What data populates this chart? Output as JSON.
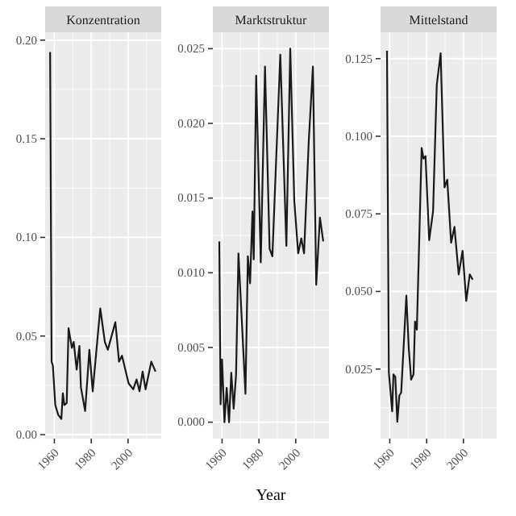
{
  "chart_data": [
    {
      "type": "line",
      "title": "Konzentration",
      "xlim": [
        1955,
        2018
      ],
      "xticks": [
        1960,
        1980,
        2000
      ],
      "ylim": [
        -0.002,
        0.204
      ],
      "yticks": [
        {
          "value": 0,
          "label": "0.00"
        },
        {
          "value": 0.05,
          "label": "0.05"
        },
        {
          "value": 0.1,
          "label": "0.10"
        },
        {
          "value": 0.15,
          "label": "0.15"
        },
        {
          "value": 0.2,
          "label": "0.20"
        }
      ],
      "grid": true,
      "series": [
        {
          "color": "#1a1a1a",
          "x": [
            1957.7,
            1958.5,
            1959.2,
            1960.5,
            1962.1,
            1963.8,
            1964.6,
            1965.4,
            1966.7,
            1967.7,
            1969.5,
            1970.5,
            1972.1,
            1973.6,
            1974.4,
            1976.7,
            1979,
            1980.8,
            1984.9,
            1987.4,
            1989,
            1993.1,
            1995.1,
            1996.7,
            2000.3,
            2002.8,
            2004.6,
            2006.2,
            2007.9,
            2009.5,
            2012.6,
            2014.9
          ],
          "values": [
            0.194,
            0.037,
            0.035,
            0.015,
            0.01,
            0.008,
            0.021,
            0.015,
            0.016,
            0.054,
            0.044,
            0.047,
            0.033,
            0.045,
            0.024,
            0.012,
            0.043,
            0.022,
            0.064,
            0.047,
            0.043,
            0.057,
            0.037,
            0.04,
            0.026,
            0.023,
            0.028,
            0.022,
            0.032,
            0.023,
            0.037,
            0.032
          ]
        }
      ]
    },
    {
      "type": "line",
      "title": "Marktstruktur",
      "xlabel": "Year",
      "xlim": [
        1955,
        2018
      ],
      "xticks": [
        1960,
        1980,
        2000
      ],
      "ylim": [
        -0.0011,
        0.0261
      ],
      "yticks": [
        {
          "value": 0,
          "label": "0.000"
        },
        {
          "value": 0.005,
          "label": "0.005"
        },
        {
          "value": 0.01,
          "label": "0.010"
        },
        {
          "value": 0.015,
          "label": "0.015"
        },
        {
          "value": 0.02,
          "label": "0.020"
        },
        {
          "value": 0.025,
          "label": "0.025"
        }
      ],
      "grid": true,
      "series": [
        {
          "color": "#1a1a1a",
          "x": [
            1958.5,
            1959.2,
            1960,
            1961.3,
            1962.5,
            1963.8,
            1965,
            1966.3,
            1967.6,
            1968.9,
            1972.7,
            1974,
            1975.2,
            1976.5,
            1977.2,
            1978.5,
            1981,
            1983.3,
            1985.8,
            1987.3,
            1991.6,
            1994.9,
            1997,
            1999.2,
            2001.3,
            2003,
            2004.5,
            2007,
            2009.3,
            2011.1,
            2013.1,
            2014.9
          ],
          "values": [
            0.0121,
            0.0012,
            0.0042,
            0.0,
            0.0023,
            0.0,
            0.0033,
            0.0009,
            0.0032,
            0.0113,
            0.0019,
            0.0111,
            0.0093,
            0.0141,
            0.0109,
            0.0232,
            0.0107,
            0.0238,
            0.0116,
            0.0111,
            0.0246,
            0.0118,
            0.025,
            0.0148,
            0.0113,
            0.0123,
            0.0113,
            0.0187,
            0.0238,
            0.0092,
            0.0137,
            0.0121
          ]
        }
      ]
    },
    {
      "type": "line",
      "title": "Mittelstand",
      "xlim": [
        1955,
        2018
      ],
      "xticks": [
        1960,
        1980,
        2000
      ],
      "ylim": [
        0.0026,
        0.1335
      ],
      "yticks": [
        {
          "value": 0.025,
          "label": "0.025"
        },
        {
          "value": 0.05,
          "label": "0.050"
        },
        {
          "value": 0.075,
          "label": "0.075"
        },
        {
          "value": 0.1,
          "label": "0.100"
        },
        {
          "value": 0.125,
          "label": "0.125"
        }
      ],
      "grid": true,
      "series": [
        {
          "color": "#1a1a1a",
          "x": [
            1958.5,
            1959.5,
            1961.3,
            1962,
            1963,
            1964.1,
            1965.2,
            1966.2,
            1969,
            1970.3,
            1971.6,
            1972.9,
            1973.7,
            1974.7,
            1977.3,
            1978.3,
            1979.4,
            1981.4,
            1983.5,
            1985.5,
            1987.6,
            1989.7,
            1991.2,
            1993.3,
            1995.1,
            1997.4,
            1999.5,
            2001.5,
            2003.4,
            2005
          ],
          "values": [
            0.1275,
            0.024,
            0.0114,
            0.0233,
            0.0225,
            0.008,
            0.0165,
            0.0174,
            0.0487,
            0.0318,
            0.0216,
            0.0233,
            0.0403,
            0.0377,
            0.0962,
            0.0928,
            0.0936,
            0.0665,
            0.0758,
            0.1165,
            0.1267,
            0.0835,
            0.086,
            0.0657,
            0.0708,
            0.0555,
            0.0631,
            0.047,
            0.0555,
            0.0538
          ]
        }
      ]
    }
  ]
}
